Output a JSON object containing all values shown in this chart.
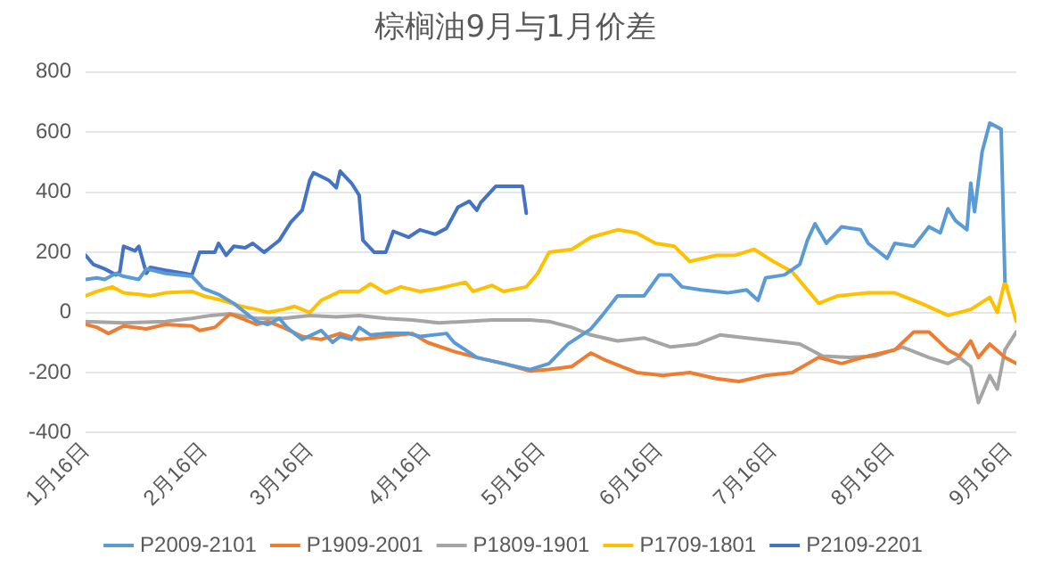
{
  "chart_data": {
    "type": "line",
    "title": "棕榈油9月与1月价差",
    "marker": "none",
    "grid": "y",
    "legend": "bottom",
    "ylim": [
      -400,
      800
    ],
    "yticks": [
      -400,
      -200,
      0,
      200,
      400,
      600,
      800
    ],
    "xlim": [
      "--01-16",
      "--09-18"
    ],
    "xticks": [
      {
        "value": "--01-16",
        "label": "1月16日"
      },
      {
        "value": "--02-16",
        "label": "2月16日"
      },
      {
        "value": "--03-16",
        "label": "3月16日"
      },
      {
        "value": "--04-16",
        "label": "4月16日"
      },
      {
        "value": "--05-16",
        "label": "5月16日"
      },
      {
        "value": "--06-16",
        "label": "6月16日"
      },
      {
        "value": "--07-16",
        "label": "7月16日"
      },
      {
        "value": "--08-16",
        "label": "8月16日"
      },
      {
        "value": "--09-16",
        "label": "9月16日"
      }
    ],
    "series": [
      {
        "name": "P2009-2101",
        "color": "#5b9bd5",
        "x": [
          "--01-16",
          "--01-19",
          "--01-21",
          "--01-24",
          "--01-26",
          "--01-30",
          "--02-01",
          "--02-06",
          "--02-13",
          "--02-16",
          "--02-20",
          "--02-24",
          "--02-27",
          "--03-02",
          "--03-05",
          "--03-08",
          "--03-10",
          "--03-14",
          "--03-19",
          "--03-22",
          "--03-24",
          "--03-27",
          "--03-29",
          "--04-01",
          "--04-05",
          "--04-11",
          "--04-14",
          "--04-21",
          "--04-23",
          "--04-29",
          "--05-06",
          "--05-13",
          "--05-18",
          "--05-23",
          "--05-29",
          "--06-01",
          "--06-05",
          "--06-12",
          "--06-16",
          "--06-19",
          "--06-22",
          "--06-27",
          "--07-04",
          "--07-09",
          "--07-12",
          "--07-14",
          "--07-19",
          "--07-23",
          "--07-25",
          "--07-27",
          "--07-30",
          "--08-03",
          "--08-08",
          "--08-10",
          "--08-15",
          "--08-17",
          "--08-22",
          "--08-26",
          "--08-29",
          "--08-31",
          "--09-02",
          "--09-05",
          "--09-06",
          "--09-07",
          "--09-09",
          "--09-11",
          "--09-14",
          "--09-15"
        ],
        "values": [
          110,
          115,
          110,
          130,
          120,
          110,
          145,
          130,
          120,
          80,
          60,
          30,
          0,
          -30,
          -40,
          -20,
          -50,
          -90,
          -60,
          -100,
          -80,
          -90,
          -50,
          -75,
          -70,
          -70,
          -80,
          -70,
          -100,
          -150,
          -170,
          -190,
          -170,
          -105,
          -55,
          -10,
          55,
          55,
          125,
          125,
          85,
          75,
          65,
          75,
          40,
          115,
          125,
          160,
          240,
          295,
          230,
          285,
          275,
          230,
          180,
          230,
          220,
          285,
          265,
          345,
          305,
          275,
          430,
          335,
          535,
          630,
          610,
          105
        ]
      },
      {
        "name": "P1909-2001",
        "color": "#ed7d31",
        "x": [
          "--01-16",
          "--01-19",
          "--01-22",
          "--01-26",
          "--02-01",
          "--02-06",
          "--02-13",
          "--02-15",
          "--02-19",
          "--02-23",
          "--02-26",
          "--03-02",
          "--03-05",
          "--03-09",
          "--03-14",
          "--03-19",
          "--03-24",
          "--03-29",
          "--04-05",
          "--04-12",
          "--04-16",
          "--04-23",
          "--04-29",
          "--05-06",
          "--05-13",
          "--05-18",
          "--05-24",
          "--05-29",
          "--06-02",
          "--06-10",
          "--06-17",
          "--06-24",
          "--07-01",
          "--07-07",
          "--07-14",
          "--07-21",
          "--07-28",
          "--08-03",
          "--08-10",
          "--08-17",
          "--08-22",
          "--08-26",
          "--08-31",
          "--09-03",
          "--09-06",
          "--09-08",
          "--09-11",
          "--09-15",
          "--09-18"
        ],
        "values": [
          -40,
          -50,
          -70,
          -45,
          -55,
          -40,
          -45,
          -60,
          -50,
          -5,
          -20,
          -40,
          -30,
          -50,
          -80,
          -90,
          -70,
          -90,
          -80,
          -70,
          -100,
          -130,
          -150,
          -170,
          -195,
          -190,
          -180,
          -135,
          -160,
          -200,
          -210,
          -200,
          -220,
          -230,
          -210,
          -200,
          -150,
          -170,
          -145,
          -125,
          -65,
          -65,
          -125,
          -145,
          -95,
          -150,
          -105,
          -150,
          -170
        ]
      },
      {
        "name": "P1809-1901",
        "color": "#a5a5a5",
        "x": [
          "--01-16",
          "--01-26",
          "--02-06",
          "--02-13",
          "--02-18",
          "--02-23",
          "--03-02",
          "--03-09",
          "--03-16",
          "--03-23",
          "--03-29",
          "--04-05",
          "--04-12",
          "--04-19",
          "--04-26",
          "--05-03",
          "--05-13",
          "--05-18",
          "--05-24",
          "--05-29",
          "--06-05",
          "--06-12",
          "--06-19",
          "--06-26",
          "--07-02",
          "--07-09",
          "--07-16",
          "--07-23",
          "--07-29",
          "--08-05",
          "--08-12",
          "--08-19",
          "--08-26",
          "--08-31",
          "--09-03",
          "--09-06",
          "--09-08",
          "--09-11",
          "--09-13",
          "--09-15",
          "--09-18"
        ],
        "values": [
          -30,
          -35,
          -30,
          -20,
          -10,
          -5,
          -20,
          -20,
          -10,
          -15,
          -10,
          -20,
          -25,
          -35,
          -30,
          -25,
          -25,
          -30,
          -50,
          -75,
          -95,
          -85,
          -115,
          -105,
          -75,
          -85,
          -95,
          -105,
          -145,
          -150,
          -145,
          -115,
          -150,
          -170,
          -150,
          -180,
          -300,
          -210,
          -255,
          -125,
          -65
        ]
      },
      {
        "name": "P1709-1801",
        "color": "#ffc000",
        "x": [
          "--01-16",
          "--01-19",
          "--01-23",
          "--01-26",
          "--01-30",
          "--02-02",
          "--02-06",
          "--02-13",
          "--02-16",
          "--02-21",
          "--02-26",
          "--03-02",
          "--03-05",
          "--03-09",
          "--03-12",
          "--03-16",
          "--03-19",
          "--03-24",
          "--03-29",
          "--04-01",
          "--04-05",
          "--04-09",
          "--04-14",
          "--04-19",
          "--04-26",
          "--04-28",
          "--05-03",
          "--05-06",
          "--05-12",
          "--05-15",
          "--05-18",
          "--05-24",
          "--05-29",
          "--06-05",
          "--06-10",
          "--06-15",
          "--06-20",
          "--06-24",
          "--07-01",
          "--07-06",
          "--07-11",
          "--07-16",
          "--07-21",
          "--07-28",
          "--08-02",
          "--08-10",
          "--08-17",
          "--08-24",
          "--08-31",
          "--09-06",
          "--09-11",
          "--09-13",
          "--09-15",
          "--09-18"
        ],
        "values": [
          55,
          70,
          85,
          65,
          60,
          55,
          65,
          70,
          55,
          40,
          20,
          10,
          0,
          10,
          20,
          0,
          40,
          70,
          70,
          95,
          65,
          85,
          70,
          80,
          100,
          70,
          90,
          70,
          85,
          130,
          200,
          210,
          250,
          275,
          265,
          230,
          220,
          170,
          190,
          190,
          210,
          170,
          135,
          30,
          55,
          65,
          65,
          30,
          -10,
          10,
          50,
          0,
          105,
          -30
        ]
      },
      {
        "name": "P2109-2201",
        "color": "#4472c4",
        "x": [
          "--01-16",
          "--01-18",
          "--01-21",
          "--01-24",
          "--01-25",
          "--01-26",
          "--01-29",
          "--01-30",
          "--02-01",
          "--02-02",
          "--02-06",
          "--02-11",
          "--02-13",
          "--02-15",
          "--02-19",
          "--02-20",
          "--02-22",
          "--02-24",
          "--02-27",
          "--03-01",
          "--03-04",
          "--03-07",
          "--03-08",
          "--03-10",
          "--03-11",
          "--03-14",
          "--03-16",
          "--03-17",
          "--03-21",
          "--03-23",
          "--03-24",
          "--03-27",
          "--03-29",
          "--03-30",
          "--04-02",
          "--04-05",
          "--04-07",
          "--04-11",
          "--04-14",
          "--04-18",
          "--04-21",
          "--04-24",
          "--04-27",
          "--04-29",
          "--04-30",
          "--05-04",
          "--05-11",
          "--05-12"
        ],
        "values": [
          190,
          160,
          145,
          125,
          135,
          220,
          205,
          220,
          130,
          150,
          140,
          130,
          125,
          200,
          200,
          230,
          190,
          220,
          215,
          230,
          200,
          230,
          240,
          280,
          300,
          340,
          440,
          465,
          440,
          415,
          470,
          430,
          390,
          240,
          200,
          200,
          270,
          250,
          275,
          260,
          280,
          350,
          370,
          340,
          365,
          420,
          420,
          330
        ]
      }
    ]
  }
}
